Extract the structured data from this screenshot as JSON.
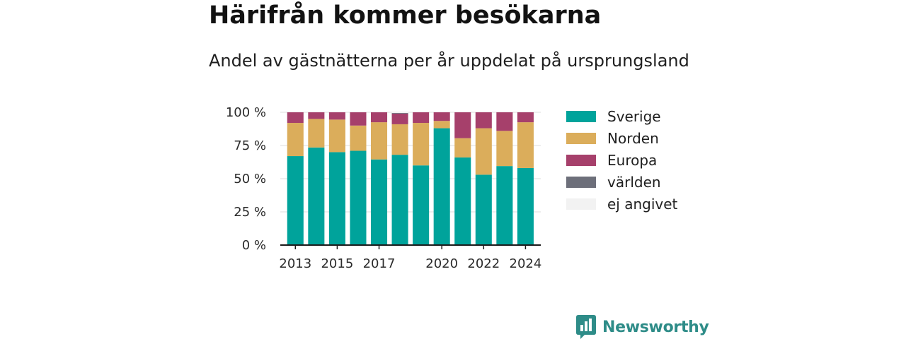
{
  "header": {
    "title": "Härifrån kommer besökarna",
    "subtitle": "Andel av gästnätterna per år uppdelat på ursprungsland"
  },
  "brand": {
    "name": "Newsworthy",
    "icon": "newsworthy-logo-icon",
    "color": "#2e8c88"
  },
  "chart_data": {
    "type": "bar",
    "stacked": true,
    "title": "Härifrån kommer besökarna",
    "subtitle": "Andel av gästnätterna per år uppdelat på ursprungsland",
    "xlabel": "",
    "ylabel": "",
    "ylim": [
      0,
      100
    ],
    "y_ticks": [
      "0 %",
      "25 %",
      "50 %",
      "75 %",
      "100 %"
    ],
    "x_tick_labels": [
      "2013",
      "2015",
      "2017",
      "2020",
      "2022",
      "2024"
    ],
    "grid": "horizontal",
    "legend_position": "right",
    "categories": [
      "2013",
      "2014",
      "2015",
      "2016",
      "2017",
      "2018",
      "2019",
      "2020",
      "2021",
      "2022",
      "2023",
      "2024"
    ],
    "series": [
      {
        "name": "Sverige",
        "color": "#00a39b",
        "values": [
          67,
          73.5,
          70,
          71,
          64.5,
          68,
          60,
          88,
          66,
          53,
          59.5,
          58
        ]
      },
      {
        "name": "Norden",
        "color": "#dbad5b",
        "values": [
          25,
          21.5,
          24.5,
          19,
          28,
          23,
          32,
          5.5,
          14.5,
          35,
          26.5,
          34.5
        ]
      },
      {
        "name": "Europa",
        "color": "#a6406b",
        "values": [
          8,
          5,
          5.5,
          10,
          7.5,
          8,
          8,
          6.5,
          19.5,
          12,
          14,
          7.5
        ]
      },
      {
        "name": "världen",
        "color": "#6d6f7a",
        "values": [
          0,
          0,
          0,
          0,
          0,
          0.5,
          0,
          0,
          0,
          0,
          0,
          0
        ]
      },
      {
        "name": "ej angivet",
        "color": "#f2f2f2",
        "values": [
          0,
          0,
          0,
          0,
          0,
          0.5,
          0,
          0,
          0,
          0,
          0,
          0
        ]
      }
    ]
  }
}
